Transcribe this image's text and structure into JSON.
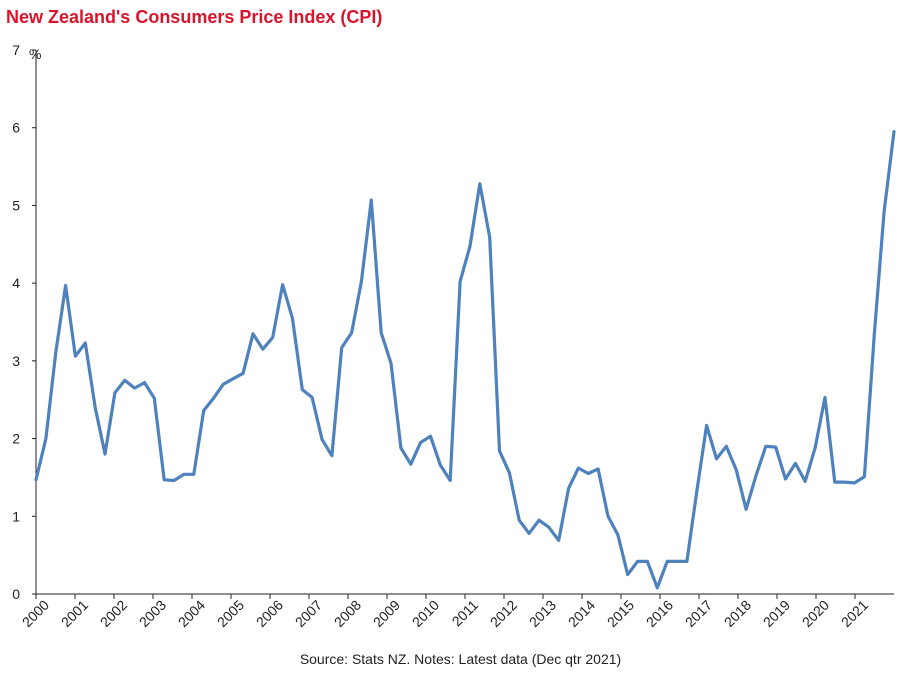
{
  "title": "New Zealand's Consumers Price Index (CPI)",
  "source": "Source: Stats NZ. Notes: Latest data (Dec qtr 2021)",
  "colors": {
    "title": "#d9132c",
    "line": "#4f81bd",
    "axis": "#222222"
  },
  "chart_data": {
    "type": "line",
    "title": "New Zealand's Consumers Price Index (CPI)",
    "xlabel": "",
    "ylabel": "%",
    "ylim": [
      0,
      7
    ],
    "yticks": [
      "0",
      "1",
      "2",
      "3",
      "4",
      "5",
      "6",
      "7"
    ],
    "xticks": [
      "2000",
      "2001",
      "2002",
      "2003",
      "2004",
      "2005",
      "2006",
      "2007",
      "2008",
      "2009",
      "2010",
      "2011",
      "2012",
      "2013",
      "2014",
      "2015",
      "2016",
      "2017",
      "2018",
      "2019",
      "2020",
      "2021"
    ],
    "grid": false,
    "legend": "none",
    "series": [
      {
        "values": [
          1.47,
          2.0,
          3.1,
          3.97,
          3.06,
          3.23,
          2.4,
          1.8,
          2.59,
          2.75,
          2.65,
          2.72,
          2.52,
          1.47,
          1.46,
          1.54,
          1.54,
          2.36,
          2.52,
          2.7,
          2.77,
          2.84,
          3.35,
          3.15,
          3.3,
          3.98,
          3.55,
          2.63,
          2.53,
          1.99,
          1.78,
          3.17,
          3.36,
          4.02,
          5.07,
          3.36,
          2.97,
          1.88,
          1.67,
          1.95,
          2.03,
          1.66,
          1.46,
          4.02,
          4.47,
          5.28,
          4.59,
          1.84,
          1.56,
          0.95,
          0.78,
          0.95,
          0.86,
          0.69,
          1.36,
          1.62,
          1.55,
          1.61,
          1.0,
          0.76,
          0.25,
          0.42,
          0.42,
          0.08,
          0.42,
          0.42,
          0.42,
          1.32,
          2.17,
          1.74,
          1.9,
          1.6,
          1.09,
          1.52,
          1.9,
          1.89,
          1.48,
          1.68,
          1.45,
          1.88,
          2.53,
          1.44,
          1.44,
          1.43,
          1.51,
          3.34,
          4.92,
          5.95
        ]
      }
    ]
  }
}
